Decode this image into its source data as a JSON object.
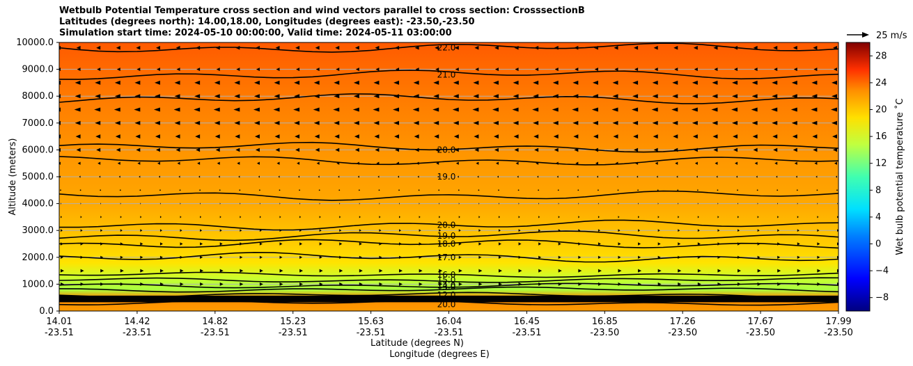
{
  "colors": {
    "background_warm": "#ff8c00",
    "contour_line": "#000000",
    "grid_line": "#b0b0b0"
  },
  "chart_data": {
    "type": "contour",
    "title_lines": [
      "Wetbulb Potential Temperature cross section and wind vectors parallel to cross section: CrosssectionB",
      "Latitudes (degrees north): 14.00,18.00, Longitudes (degrees east): -23.50,-23.50",
      "Simulation start time: 2024-05-10 00:00:00, Valid time: 2024-05-11 03:00:00"
    ],
    "ylabel": "Altitude (meters)",
    "xlabel_primary": "Latitude (degrees N)",
    "xlabel_secondary": "Longitude (degrees E)",
    "ylim": [
      0,
      10000
    ],
    "yticks": [
      "0.0",
      "1000.0",
      "2000.0",
      "3000.0",
      "4000.0",
      "5000.0",
      "6000.0",
      "7000.0",
      "8000.0",
      "9000.0",
      "10000.0"
    ],
    "xticks": [
      {
        "lat": "14.01",
        "lon": "-23.51"
      },
      {
        "lat": "14.42",
        "lon": "-23.51"
      },
      {
        "lat": "14.82",
        "lon": "-23.51"
      },
      {
        "lat": "15.23",
        "lon": "-23.51"
      },
      {
        "lat": "15.63",
        "lon": "-23.51"
      },
      {
        "lat": "16.04",
        "lon": "-23.51"
      },
      {
        "lat": "16.45",
        "lon": "-23.51"
      },
      {
        "lat": "16.85",
        "lon": "-23.50"
      },
      {
        "lat": "17.26",
        "lon": "-23.50"
      },
      {
        "lat": "17.67",
        "lon": "-23.50"
      },
      {
        "lat": "17.99",
        "lon": "-23.50"
      }
    ],
    "colorbar": {
      "label": "Wet bulb potential temperature ˚C",
      "range": [
        -10,
        30
      ],
      "ticks": [
        "−8",
        "−4",
        "0",
        "4",
        "8",
        "12",
        "16",
        "20",
        "24",
        "28"
      ],
      "colormap": "jet"
    },
    "wind_key": {
      "label": "25 m/s",
      "speed_ms": 25
    },
    "contour_labels": [
      "22.0",
      "21.0",
      "20.0",
      "19.0",
      "20.0",
      "19.0",
      "18.0",
      "17.0",
      "16.0",
      "15.0",
      "14.0",
      "13.0",
      "12.0",
      "20.0"
    ],
    "contours": [
      {
        "level": 22,
        "alt": 9800
      },
      {
        "level": 21,
        "alt": 8800
      },
      {
        "level": 21,
        "alt": 7900
      },
      {
        "level": 20,
        "alt": 6100
      },
      {
        "level": 19,
        "alt": 5600
      },
      {
        "level": 19,
        "alt": 4300
      },
      {
        "level": 20,
        "alt": 3200
      },
      {
        "level": 19,
        "alt": 2800
      },
      {
        "level": 18,
        "alt": 2500
      },
      {
        "level": 17,
        "alt": 2000
      },
      {
        "level": 16,
        "alt": 1350
      },
      {
        "level": 15,
        "alt": 1150
      },
      {
        "level": 14,
        "alt": 950
      },
      {
        "level": 13,
        "alt": 800
      },
      {
        "level": 12,
        "alt": 600
      },
      {
        "level": 20,
        "alt": 300
      }
    ],
    "wind_rows": [
      {
        "alt": 9800,
        "u": -6
      },
      {
        "alt": 9000,
        "u": -5
      },
      {
        "alt": 8500,
        "u": -8
      },
      {
        "alt": 8000,
        "u": -8
      },
      {
        "alt": 7500,
        "u": -9
      },
      {
        "alt": 7000,
        "u": -8
      },
      {
        "alt": 6500,
        "u": -7
      },
      {
        "alt": 6000,
        "u": -6
      },
      {
        "alt": 5500,
        "u": -4
      },
      {
        "alt": 5000,
        "u": -2
      },
      {
        "alt": 4500,
        "u": 0
      },
      {
        "alt": 4000,
        "u": 1
      },
      {
        "alt": 3500,
        "u": 2
      },
      {
        "alt": 3000,
        "u": 3
      },
      {
        "alt": 2500,
        "u": 4
      },
      {
        "alt": 2000,
        "u": 4
      },
      {
        "alt": 1500,
        "u": 5
      },
      {
        "alt": 1000,
        "u": 5
      },
      {
        "alt": 500,
        "u": 4
      }
    ]
  }
}
